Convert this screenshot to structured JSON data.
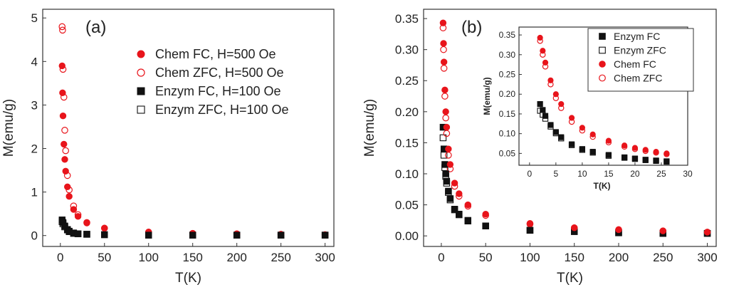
{
  "chart_data": [
    {
      "type": "scatter",
      "panel_label": "(a)",
      "xlabel": "T(K)",
      "ylabel": "M(emu/g)",
      "xlim": [
        -20,
        310
      ],
      "ylim": [
        -0.25,
        5.2
      ],
      "xticks": [
        "0",
        "50",
        "100",
        "150",
        "200",
        "250",
        "300"
      ],
      "yticks": [
        "0",
        "1",
        "2",
        "3",
        "4",
        "5"
      ],
      "legend_position": "top-right",
      "series": [
        {
          "name": "Chem FC, H=500 Oe",
          "color": "#e8141b",
          "marker": "filled-circle",
          "x": [
            2,
            2.5,
            3,
            4,
            5,
            6,
            8,
            10,
            15,
            20,
            30,
            50,
            100,
            150,
            200,
            250,
            300
          ],
          "y": [
            3.9,
            3.28,
            2.75,
            2.1,
            1.75,
            1.48,
            1.12,
            0.9,
            0.6,
            0.44,
            0.29,
            0.17,
            0.08,
            0.05,
            0.04,
            0.03,
            0.02
          ]
        },
        {
          "name": "Chem ZFC, H=500 Oe",
          "color": "#e8141b",
          "marker": "open-circle",
          "x": [
            2,
            2.5,
            3,
            4,
            5,
            6,
            8,
            10,
            15,
            20,
            30,
            50,
            100,
            150,
            200,
            250,
            300
          ],
          "y": [
            4.8,
            4.72,
            3.82,
            3.18,
            2.42,
            1.95,
            1.38,
            1.05,
            0.68,
            0.48,
            0.3,
            0.17,
            0.08,
            0.05,
            0.04,
            0.03,
            0.02
          ]
        },
        {
          "name": "Enzym FC, H=100 Oe",
          "color": "#111111",
          "marker": "filled-square",
          "x": [
            2,
            3,
            5,
            8,
            10,
            15,
            20,
            30,
            50,
            100,
            150,
            200,
            250,
            300
          ],
          "y": [
            0.36,
            0.3,
            0.22,
            0.14,
            0.1,
            0.06,
            0.04,
            0.03,
            0.02,
            0.01,
            0.01,
            0.01,
            0.01,
            0.01
          ]
        },
        {
          "name": "Enzym ZFC, H=100 Oe",
          "color": "#111111",
          "marker": "open-square",
          "x": [
            2,
            3,
            5,
            8,
            10,
            15,
            20,
            30,
            50,
            100,
            150,
            200,
            250,
            300
          ],
          "y": [
            0.32,
            0.27,
            0.2,
            0.13,
            0.09,
            0.05,
            0.04,
            0.03,
            0.02,
            0.01,
            0.01,
            0.01,
            0.01,
            0.01
          ]
        }
      ]
    },
    {
      "type": "scatter",
      "panel_label": "(b)",
      "xlabel": "T(K)",
      "ylabel": "M(emu/g)",
      "xlim": [
        -20,
        310
      ],
      "ylim": [
        -0.017,
        0.365
      ],
      "xticks": [
        "0",
        "50",
        "100",
        "150",
        "200",
        "250",
        "300"
      ],
      "yticks": [
        "0.00",
        "0.05",
        "0.10",
        "0.15",
        "0.20",
        "0.25",
        "0.30",
        "0.35"
      ],
      "legend_position": "top-right",
      "series": [
        {
          "name": "Enzym FC",
          "color": "#111111",
          "marker": "filled-square",
          "x": [
            2,
            3,
            4,
            5,
            6,
            8,
            10,
            15,
            20,
            30,
            50,
            100,
            150,
            200,
            250,
            300
          ],
          "y": [
            0.175,
            0.14,
            0.115,
            0.1,
            0.088,
            0.072,
            0.06,
            0.043,
            0.035,
            0.025,
            0.016,
            0.009,
            0.007,
            0.005,
            0.004,
            0.004
          ]
        },
        {
          "name": "Enzym ZFC",
          "color": "#111111",
          "marker": "open-square",
          "x": [
            2,
            3,
            4,
            5,
            6,
            8,
            10,
            15,
            20,
            30,
            50,
            100,
            150,
            200,
            250,
            300
          ],
          "y": [
            0.158,
            0.13,
            0.11,
            0.096,
            0.085,
            0.07,
            0.058,
            0.042,
            0.034,
            0.024,
            0.016,
            0.009,
            0.007,
            0.005,
            0.004,
            0.004
          ]
        },
        {
          "name": "Chem FC",
          "color": "#e8141b",
          "marker": "filled-circle",
          "x": [
            2,
            2.5,
            3,
            4,
            5,
            6,
            8,
            10,
            15,
            20,
            30,
            50,
            100,
            150,
            200,
            250,
            300
          ],
          "y": [
            0.343,
            0.31,
            0.28,
            0.235,
            0.2,
            0.175,
            0.14,
            0.115,
            0.085,
            0.068,
            0.05,
            0.035,
            0.02,
            0.013,
            0.01,
            0.008,
            0.006
          ]
        },
        {
          "name": "Chem ZFC",
          "color": "#e8141b",
          "marker": "open-circle",
          "x": [
            2,
            2.5,
            3,
            4,
            5,
            6,
            8,
            10,
            15,
            20,
            30,
            50,
            100,
            150,
            200,
            250,
            300
          ],
          "y": [
            0.335,
            0.3,
            0.27,
            0.225,
            0.19,
            0.165,
            0.13,
            0.108,
            0.08,
            0.064,
            0.048,
            0.033,
            0.019,
            0.013,
            0.01,
            0.008,
            0.006
          ]
        }
      ],
      "inset": {
        "xlabel": "T(K)",
        "ylabel": "M(emu/g)",
        "xlim": [
          -2,
          30
        ],
        "ylim": [
          0.02,
          0.37
        ],
        "xticks": [
          "0",
          "5",
          "10",
          "15",
          "20",
          "25",
          "30"
        ],
        "yticks": [
          "0.05",
          "0.10",
          "0.15",
          "0.20",
          "0.25",
          "0.30",
          "0.35"
        ],
        "series": [
          {
            "name": "Enzym FC",
            "color": "#111111",
            "marker": "filled-square",
            "x": [
              2,
              2.5,
              3,
              4,
              5,
              6,
              8,
              10,
              12,
              15,
              18,
              20,
              22,
              24,
              26
            ],
            "y": [
              0.175,
              0.16,
              0.145,
              0.122,
              0.104,
              0.091,
              0.073,
              0.061,
              0.054,
              0.046,
              0.04,
              0.037,
              0.034,
              0.032,
              0.03
            ]
          },
          {
            "name": "Enzym ZFC",
            "color": "#111111",
            "marker": "open-square",
            "x": [
              2,
              2.5,
              3,
              4,
              5,
              6,
              8,
              10,
              12,
              15,
              18,
              20,
              22,
              24,
              26
            ],
            "y": [
              0.158,
              0.148,
              0.138,
              0.118,
              0.101,
              0.088,
              0.071,
              0.059,
              0.052,
              0.044,
              0.039,
              0.036,
              0.033,
              0.031,
              0.029
            ]
          },
          {
            "name": "Chem FC",
            "color": "#e8141b",
            "marker": "filled-circle",
            "x": [
              2,
              2.5,
              3,
              4,
              5,
              6,
              8,
              10,
              12,
              15,
              18,
              20,
              22,
              24,
              26
            ],
            "y": [
              0.343,
              0.31,
              0.28,
              0.235,
              0.2,
              0.175,
              0.14,
              0.115,
              0.098,
              0.082,
              0.07,
              0.064,
              0.059,
              0.054,
              0.05
            ]
          },
          {
            "name": "Chem ZFC",
            "color": "#e8141b",
            "marker": "open-circle",
            "x": [
              2,
              2.5,
              3,
              4,
              5,
              6,
              8,
              10,
              12,
              15,
              18,
              20,
              22,
              24,
              26
            ],
            "y": [
              0.335,
              0.3,
              0.27,
              0.225,
              0.19,
              0.165,
              0.13,
              0.108,
              0.092,
              0.078,
              0.067,
              0.061,
              0.056,
              0.052,
              0.048
            ]
          }
        ]
      }
    }
  ]
}
